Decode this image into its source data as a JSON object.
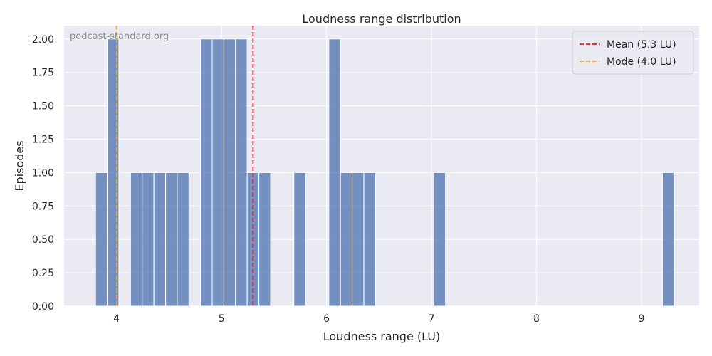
{
  "chart_data": {
    "type": "bar",
    "title": "Loudness range distribution",
    "xlabel": "Loudness range (LU)",
    "ylabel": "Episodes",
    "watermark": "podcast-standard.org",
    "xlim": [
      3.5,
      9.55
    ],
    "ylim": [
      0,
      2.1
    ],
    "bin_width": 0.111,
    "bar_color": "#4c72b0",
    "background": "#eaeaf2",
    "grid": true,
    "x_ticks": [
      4,
      5,
      6,
      7,
      8,
      9
    ],
    "x_tick_labels": [
      "4",
      "5",
      "6",
      "7",
      "8",
      "9"
    ],
    "y_ticks": [
      0,
      0.25,
      0.5,
      0.75,
      1.0,
      1.25,
      1.5,
      1.75,
      2.0
    ],
    "y_tick_labels": [
      "0.00",
      "0.25",
      "0.50",
      "0.75",
      "1.00",
      "1.25",
      "1.50",
      "1.75",
      "2.00"
    ],
    "bars": [
      {
        "x": 3.8,
        "count": 1
      },
      {
        "x": 3.911,
        "count": 2
      },
      {
        "x": 4.133,
        "count": 1
      },
      {
        "x": 4.244,
        "count": 1
      },
      {
        "x": 4.356,
        "count": 1
      },
      {
        "x": 4.467,
        "count": 1
      },
      {
        "x": 4.578,
        "count": 1
      },
      {
        "x": 4.8,
        "count": 2
      },
      {
        "x": 4.911,
        "count": 2
      },
      {
        "x": 5.022,
        "count": 2
      },
      {
        "x": 5.133,
        "count": 2
      },
      {
        "x": 5.244,
        "count": 1
      },
      {
        "x": 5.356,
        "count": 1
      },
      {
        "x": 5.689,
        "count": 1
      },
      {
        "x": 6.022,
        "count": 2
      },
      {
        "x": 6.133,
        "count": 1
      },
      {
        "x": 6.244,
        "count": 1
      },
      {
        "x": 6.356,
        "count": 1
      },
      {
        "x": 7.022,
        "count": 1
      },
      {
        "x": 9.2,
        "count": 1
      }
    ],
    "reference_lines": [
      {
        "name": "Mean (5.3 LU)",
        "x": 5.3,
        "color": "#e41a1c"
      },
      {
        "name": "Mode (4.0 LU)",
        "x": 4.0,
        "color": "#f5a623"
      }
    ],
    "legend_position": "top-right"
  }
}
